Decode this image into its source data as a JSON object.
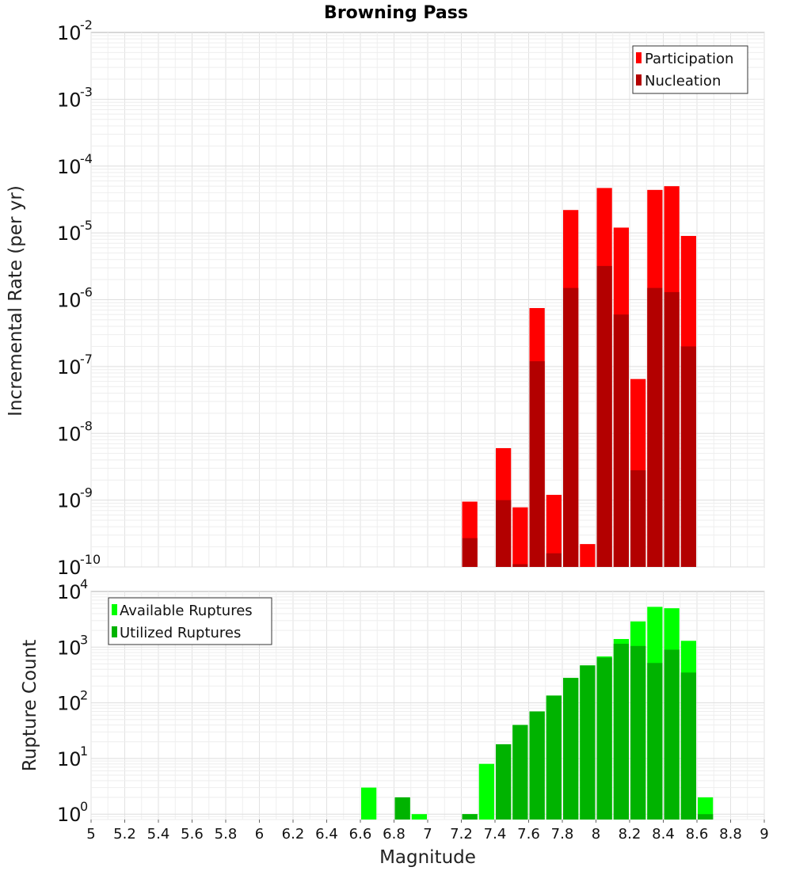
{
  "chart_data": [
    {
      "type": "bar",
      "title": "Browning Pass",
      "xlabel": "Magnitude",
      "ylabel": "Incremental Rate (per yr)",
      "yscale": "log",
      "ylim": [
        1e-10,
        0.01
      ],
      "xlim": [
        5,
        9
      ],
      "bar_width": 0.1,
      "grid": true,
      "legend_position": "top-right",
      "series": [
        {
          "name": "Participation",
          "color": "#ff0000",
          "points": [
            {
              "x": 7.25,
              "y": 9.5e-10
            },
            {
              "x": 7.45,
              "y": 6e-09
            },
            {
              "x": 7.55,
              "y": 7.8e-10
            },
            {
              "x": 7.65,
              "y": 7.5e-07
            },
            {
              "x": 7.75,
              "y": 1.2e-09
            },
            {
              "x": 7.85,
              "y": 2.2e-05
            },
            {
              "x": 7.95,
              "y": 2.2e-10
            },
            {
              "x": 8.05,
              "y": 4.7e-05
            },
            {
              "x": 8.15,
              "y": 1.2e-05
            },
            {
              "x": 8.25,
              "y": 6.5e-08
            },
            {
              "x": 8.35,
              "y": 4.4e-05
            },
            {
              "x": 8.45,
              "y": 5e-05
            },
            {
              "x": 8.55,
              "y": 9e-06
            }
          ]
        },
        {
          "name": "Nucleation",
          "color": "#b30000",
          "points": [
            {
              "x": 7.25,
              "y": 2.7e-10
            },
            {
              "x": 7.45,
              "y": 1e-09
            },
            {
              "x": 7.55,
              "y": 1.1e-10
            },
            {
              "x": 7.65,
              "y": 1.2e-07
            },
            {
              "x": 7.75,
              "y": 1.6e-10
            },
            {
              "x": 7.85,
              "y": 1.5e-06
            },
            {
              "x": 8.05,
              "y": 3.2e-06
            },
            {
              "x": 8.15,
              "y": 6e-07
            },
            {
              "x": 8.25,
              "y": 2.8e-09
            },
            {
              "x": 8.35,
              "y": 1.5e-06
            },
            {
              "x": 8.45,
              "y": 1.3e-06
            },
            {
              "x": 8.55,
              "y": 2e-07
            }
          ]
        }
      ]
    },
    {
      "type": "bar",
      "xlabel": "Magnitude",
      "ylabel": "Rupture Count",
      "yscale": "log",
      "ylim": [
        0.8,
        10000
      ],
      "xlim": [
        5,
        9
      ],
      "bar_width": 0.1,
      "grid": true,
      "legend_position": "top-left",
      "x_ticks": [
        "5",
        "5.2",
        "5.4",
        "5.6",
        "5.8",
        "6",
        "6.2",
        "6.4",
        "6.6",
        "6.8",
        "7",
        "7.2",
        "7.4",
        "7.6",
        "7.8",
        "8",
        "8.2",
        "8.4",
        "8.6",
        "8.8",
        "9"
      ],
      "series": [
        {
          "name": "Available Ruptures",
          "color": "#00ff00",
          "points": [
            {
              "x": 6.65,
              "y": 3
            },
            {
              "x": 6.85,
              "y": 2
            },
            {
              "x": 6.95,
              "y": 1
            },
            {
              "x": 7.25,
              "y": 1
            },
            {
              "x": 7.35,
              "y": 8
            },
            {
              "x": 7.45,
              "y": 18
            },
            {
              "x": 7.55,
              "y": 40
            },
            {
              "x": 7.65,
              "y": 70
            },
            {
              "x": 7.75,
              "y": 135
            },
            {
              "x": 7.85,
              "y": 280
            },
            {
              "x": 7.95,
              "y": 470
            },
            {
              "x": 8.05,
              "y": 680
            },
            {
              "x": 8.15,
              "y": 1400
            },
            {
              "x": 8.25,
              "y": 2900
            },
            {
              "x": 8.35,
              "y": 5300
            },
            {
              "x": 8.45,
              "y": 5000
            },
            {
              "x": 8.55,
              "y": 1300
            },
            {
              "x": 8.65,
              "y": 2
            }
          ]
        },
        {
          "name": "Utilized Ruptures",
          "color": "#00b300",
          "points": [
            {
              "x": 6.85,
              "y": 2
            },
            {
              "x": 7.25,
              "y": 1
            },
            {
              "x": 7.45,
              "y": 18
            },
            {
              "x": 7.55,
              "y": 40
            },
            {
              "x": 7.65,
              "y": 70
            },
            {
              "x": 7.75,
              "y": 135
            },
            {
              "x": 7.85,
              "y": 280
            },
            {
              "x": 7.95,
              "y": 470
            },
            {
              "x": 8.05,
              "y": 650
            },
            {
              "x": 8.15,
              "y": 1150
            },
            {
              "x": 8.25,
              "y": 1050
            },
            {
              "x": 8.35,
              "y": 520
            },
            {
              "x": 8.45,
              "y": 900
            },
            {
              "x": 8.55,
              "y": 350
            },
            {
              "x": 8.65,
              "y": 1
            }
          ]
        }
      ]
    }
  ]
}
